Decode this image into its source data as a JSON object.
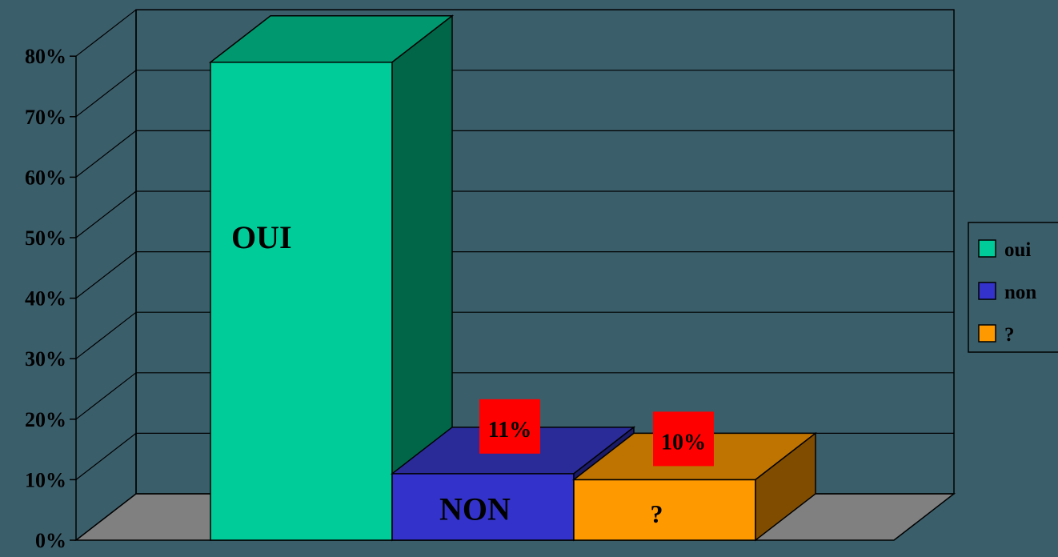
{
  "chart_data": {
    "type": "bar",
    "title": "",
    "xlabel": "",
    "ylabel": "",
    "ylim": [
      0,
      0.8
    ],
    "yticks": [
      {
        "value": 0.0,
        "label": "0%"
      },
      {
        "value": 0.1,
        "label": "10%"
      },
      {
        "value": 0.2,
        "label": "20%"
      },
      {
        "value": 0.3,
        "label": "30%"
      },
      {
        "value": 0.4,
        "label": "40%"
      },
      {
        "value": 0.5,
        "label": "50%"
      },
      {
        "value": 0.6,
        "label": "60%"
      },
      {
        "value": 0.7,
        "label": "70%"
      },
      {
        "value": 0.8,
        "label": "80%"
      }
    ],
    "grid": true,
    "legend_position": "right",
    "categories": [
      "oui",
      "non",
      "?"
    ],
    "series": [
      {
        "name": "oui",
        "values": [
          0.79,
          null,
          null
        ],
        "color": "#00cc99",
        "side_color": "#006647",
        "top_color": "#00996f",
        "bar_label": "OUI",
        "data_label": ""
      },
      {
        "name": "non",
        "values": [
          null,
          0.11,
          null
        ],
        "color": "#3333cc",
        "side_color": "#1a1a66",
        "top_color": "#2a2a99",
        "bar_label": "NON",
        "data_label": "11%"
      },
      {
        "name": "?",
        "values": [
          null,
          null,
          0.1
        ],
        "color": "#ff9900",
        "side_color": "#7f4c00",
        "top_color": "#bf7300",
        "bar_label": "?",
        "data_label": "10%"
      }
    ],
    "colors": {
      "background": "#3b5e6b",
      "floor": "#808080",
      "label_box": "#ff0000"
    }
  }
}
